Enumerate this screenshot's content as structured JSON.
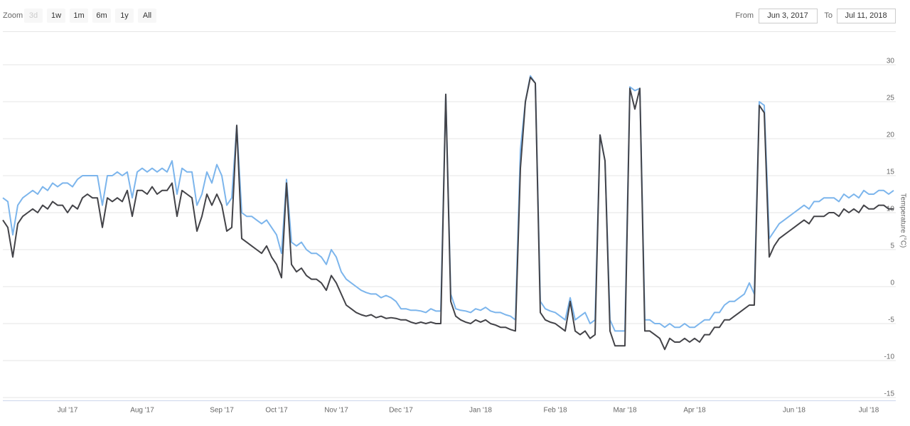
{
  "zoom": {
    "label": "Zoom",
    "buttons": [
      "3d",
      "1w",
      "1m",
      "6m",
      "1y",
      "All"
    ],
    "disabled": "3d"
  },
  "range": {
    "from_label": "From",
    "from": "Jun 3, 2017",
    "to_label": "To",
    "to": "Jul 11, 2018"
  },
  "chart_data": {
    "type": "line",
    "y_label": "Temperature (°C)",
    "ylim": [
      -15,
      30
    ],
    "yticks": [
      -15,
      -10,
      -5,
      0,
      5,
      10,
      15,
      20,
      25,
      30
    ],
    "grid": true,
    "categories": [
      null,
      null,
      null,
      null,
      null,
      null,
      null,
      null,
      null,
      null,
      null,
      null,
      null,
      "Jul '17",
      null,
      null,
      null,
      null,
      null,
      null,
      null,
      null,
      null,
      null,
      null,
      null,
      null,
      null,
      "Aug '17",
      null,
      null,
      null,
      null,
      null,
      null,
      null,
      null,
      null,
      null,
      null,
      null,
      null,
      null,
      null,
      "Sep '17",
      null,
      null,
      null,
      null,
      null,
      null,
      null,
      null,
      null,
      null,
      "Oct '17",
      null,
      null,
      null,
      null,
      null,
      null,
      null,
      null,
      null,
      null,
      null,
      "Nov '17",
      null,
      null,
      null,
      null,
      null,
      null,
      null,
      null,
      null,
      null,
      null,
      null,
      "Dec '17",
      null,
      null,
      null,
      null,
      null,
      null,
      null,
      null,
      null,
      null,
      null,
      null,
      null,
      null,
      null,
      "Jan '18",
      null,
      null,
      null,
      null,
      null,
      null,
      null,
      null,
      null,
      null,
      null,
      null,
      null,
      null,
      "Feb '18",
      null,
      null,
      null,
      null,
      null,
      null,
      null,
      null,
      null,
      null,
      null,
      null,
      null,
      "Mar '18",
      null,
      null,
      null,
      null,
      null,
      null,
      null,
      null,
      null,
      null,
      null,
      null,
      null,
      "Apr '18",
      null,
      null,
      null,
      null,
      null,
      null,
      null,
      null,
      null,
      null,
      null,
      null,
      null,
      null,
      null,
      null,
      null,
      null,
      null,
      "Jun '18",
      null,
      null,
      null,
      null,
      null,
      null,
      null,
      null,
      null,
      null,
      null,
      null,
      null,
      null,
      "Jul '18",
      null,
      null,
      null,
      null,
      null
    ],
    "series": [
      {
        "color": "#7cb5ec",
        "values": [
          12,
          11.5,
          7,
          11,
          12,
          12.5,
          13,
          12.5,
          13.5,
          13,
          14,
          13.5,
          14,
          14,
          13.5,
          14.5,
          15,
          15,
          15,
          15,
          11,
          15,
          15,
          15.5,
          15,
          15.5,
          12,
          15.5,
          16,
          15.5,
          16,
          15.5,
          16,
          15.5,
          17,
          12.5,
          16,
          15.5,
          15.5,
          11,
          12.5,
          15.5,
          14,
          16.5,
          15,
          11,
          12,
          21.8,
          10,
          9.5,
          9.5,
          9,
          8.5,
          9,
          8,
          7,
          4.5,
          14.5,
          6,
          5.5,
          6,
          5,
          4.5,
          4.5,
          4,
          3,
          5,
          4,
          2,
          1,
          0.5,
          0,
          -0.5,
          -0.8,
          -1,
          -1,
          -1.5,
          -1.2,
          -1.5,
          -2,
          -3,
          -3,
          -3.2,
          -3.2,
          -3.3,
          -3.5,
          -3,
          -3.3,
          -3.3,
          26,
          -1,
          -3,
          -3.2,
          -3.3,
          -3.5,
          -3,
          -3.2,
          -2.8,
          -3.3,
          -3.5,
          -3.5,
          -3.8,
          -4,
          -4.5,
          18.5,
          25,
          28.5,
          27.5,
          -2,
          -3,
          -3.3,
          -3.5,
          -4,
          -4.5,
          -1.5,
          -4.5,
          -4,
          -3.5,
          -5,
          -4.5,
          20.5,
          17,
          -4.5,
          -6,
          -6,
          -6,
          27,
          26.5,
          26.8,
          -4.5,
          -4.5,
          -5,
          -5,
          -5.5,
          -5,
          -5.5,
          -5.5,
          -5,
          -5.5,
          -5.5,
          -5,
          -4.5,
          -4.5,
          -3.5,
          -3.5,
          -2.5,
          -2,
          -2,
          -1.5,
          -1,
          0.5,
          -1,
          25,
          24.5,
          6.5,
          7.5,
          8.5,
          9,
          9.5,
          10,
          10.5,
          11,
          10.5,
          11.5,
          11.5,
          12,
          12,
          12,
          11.5,
          12.5,
          12,
          12.5,
          12,
          13,
          12.5,
          12.5,
          13,
          13,
          12.5,
          13
        ]
      },
      {
        "color": "#434348",
        "values": [
          9,
          8,
          4,
          8.5,
          9.5,
          10,
          10.5,
          10,
          11,
          10.5,
          11.5,
          11,
          11,
          10,
          11,
          10.5,
          12,
          12.5,
          12,
          12,
          8,
          12,
          11.5,
          12,
          11.5,
          13,
          9.5,
          13,
          13,
          12.5,
          13.5,
          12.5,
          13,
          13,
          14,
          9.5,
          13,
          12.5,
          12,
          7.5,
          9.5,
          12.5,
          11,
          12.5,
          11,
          7.5,
          8,
          21.8,
          6.5,
          6,
          5.5,
          5,
          4.5,
          5.5,
          4,
          3,
          1.2,
          14,
          3,
          2,
          2.5,
          1.5,
          1,
          1,
          0.5,
          -0.5,
          1.5,
          0.5,
          -1,
          -2.5,
          -3,
          -3.5,
          -3.8,
          -4,
          -3.8,
          -4.2,
          -4,
          -4.3,
          -4.2,
          -4.3,
          -4.5,
          -4.5,
          -4.8,
          -5,
          -4.8,
          -5,
          -4.8,
          -5,
          -5,
          26,
          -2,
          -4,
          -4.5,
          -4.8,
          -5,
          -4.5,
          -4.8,
          -4.5,
          -5,
          -5.2,
          -5.5,
          -5.5,
          -5.8,
          -6,
          16,
          25,
          28.3,
          27.5,
          -3.5,
          -4.5,
          -4.8,
          -5,
          -5.5,
          -6,
          -2,
          -6,
          -6.5,
          -6,
          -7,
          -6.5,
          20.5,
          17,
          -6,
          -8,
          -8,
          -8,
          26.8,
          24,
          26.8,
          -6,
          -6,
          -6.5,
          -7,
          -8.5,
          -7,
          -7.5,
          -7.5,
          -7,
          -7.5,
          -7,
          -7.5,
          -6.5,
          -6.5,
          -5.5,
          -5.5,
          -4.5,
          -4.5,
          -4,
          -3.5,
          -3,
          -2.5,
          -2.5,
          24.5,
          23.5,
          4,
          5.5,
          6.5,
          7,
          7.5,
          8,
          8.5,
          9,
          8.5,
          9.5,
          9.5,
          9.5,
          10,
          10,
          9.5,
          10.5,
          10,
          10.5,
          10,
          11,
          10.5,
          10.5,
          11,
          11,
          10.5,
          10.5
        ]
      }
    ]
  }
}
